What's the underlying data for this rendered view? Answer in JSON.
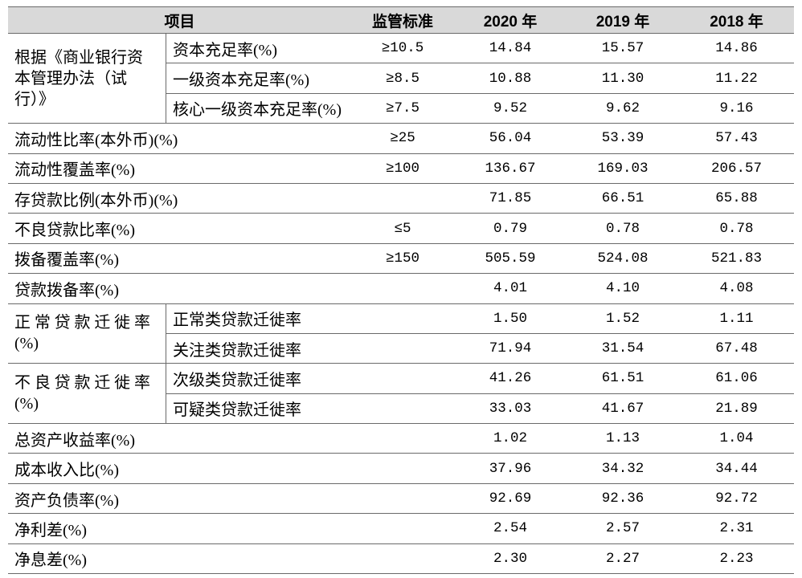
{
  "colors": {
    "header_background": "#d9d9d9",
    "rule_line": "#6a6a6a"
  },
  "table": {
    "header": {
      "item": "项目",
      "standard": "监管标准",
      "years": [
        "2020 年",
        "2019 年",
        "2018 年"
      ]
    },
    "groups": [
      {
        "lines": [
          "根据《商业银行资",
          "本管理办法（试",
          "行）》"
        ]
      },
      {
        "lines": [
          "正常贷款迁徙率",
          "(%)"
        ]
      },
      {
        "lines": [
          "不良贷款迁徙率",
          "(%)"
        ]
      }
    ],
    "rows": [
      {
        "label": "资本充足率(%)",
        "standard": "≥10.5",
        "values": [
          "14.84",
          "15.57",
          "14.86"
        ]
      },
      {
        "label": "一级资本充足率(%)",
        "standard": "≥8.5",
        "values": [
          "10.88",
          "11.30",
          "11.22"
        ]
      },
      {
        "label": "核心一级资本充足率(%)",
        "standard": "≥7.5",
        "values": [
          "9.52",
          "9.62",
          "9.16"
        ]
      },
      {
        "label": "流动性比率(本外币)(%)",
        "standard": "≥25",
        "values": [
          "56.04",
          "53.39",
          "57.43"
        ]
      },
      {
        "label": "流动性覆盖率(%)",
        "standard": "≥100",
        "values": [
          "136.67",
          "169.03",
          "206.57"
        ]
      },
      {
        "label": "存贷款比例(本外币)(%)",
        "values": [
          "71.85",
          "66.51",
          "65.88"
        ]
      },
      {
        "label": "不良贷款比率(%)",
        "standard": "≤5",
        "values": [
          "0.79",
          "0.78",
          "0.78"
        ]
      },
      {
        "label": "拨备覆盖率(%)",
        "standard": "≥150",
        "values": [
          "505.59",
          "524.08",
          "521.83"
        ]
      },
      {
        "label": "贷款拨备率(%)",
        "values": [
          "4.01",
          "4.10",
          "4.08"
        ]
      },
      {
        "label": "正常类贷款迁徙率",
        "values": [
          "1.50",
          "1.52",
          "1.11"
        ]
      },
      {
        "label": "关注类贷款迁徙率",
        "values": [
          "71.94",
          "31.54",
          "67.48"
        ]
      },
      {
        "label": "次级类贷款迁徙率",
        "values": [
          "41.26",
          "61.51",
          "61.06"
        ]
      },
      {
        "label": "可疑类贷款迁徙率",
        "values": [
          "33.03",
          "41.67",
          "21.89"
        ]
      },
      {
        "label": "总资产收益率(%)",
        "values": [
          "1.02",
          "1.13",
          "1.04"
        ]
      },
      {
        "label": "成本收入比(%)",
        "values": [
          "37.96",
          "34.32",
          "34.44"
        ]
      },
      {
        "label": "资产负债率(%)",
        "values": [
          "92.69",
          "92.36",
          "92.72"
        ]
      },
      {
        "label": "净利差(%)",
        "values": [
          "2.54",
          "2.57",
          "2.31"
        ]
      },
      {
        "label": "净息差(%)",
        "values": [
          "2.30",
          "2.27",
          "2.23"
        ]
      }
    ]
  }
}
